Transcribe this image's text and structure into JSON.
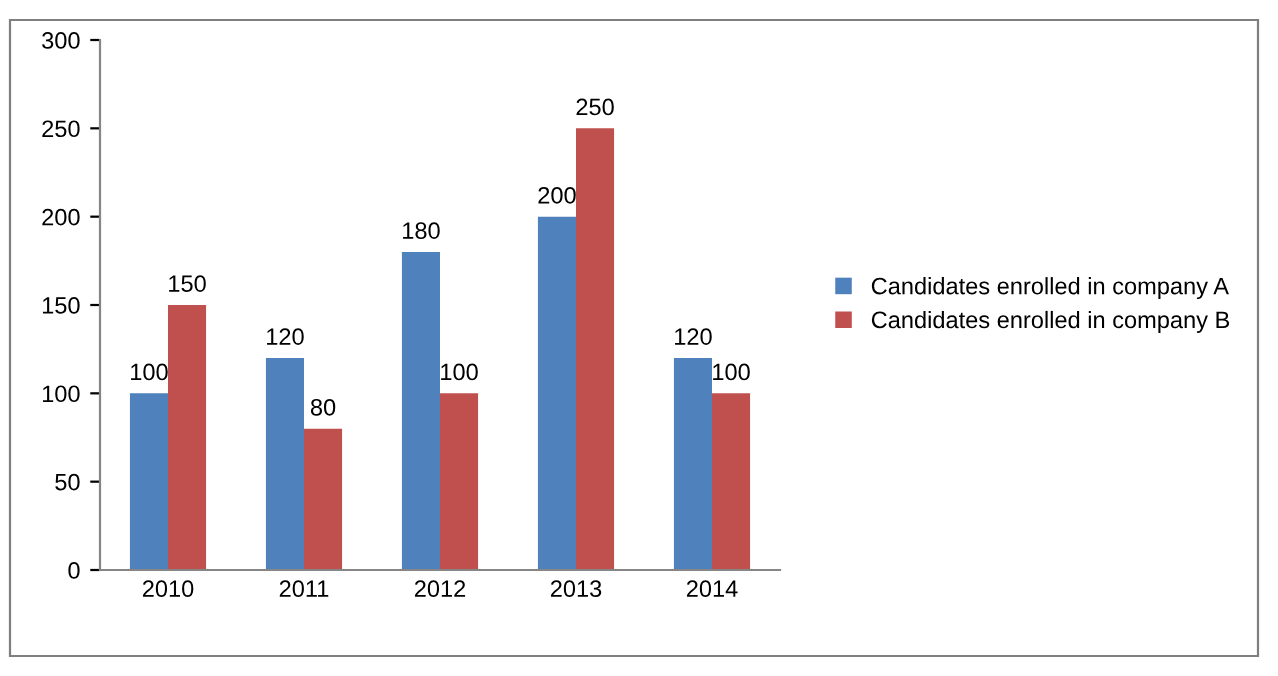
{
  "chart_data": {
    "type": "bar",
    "categories": [
      "2010",
      "2011",
      "2012",
      "2013",
      "2014"
    ],
    "series": [
      {
        "name": "Candidates enrolled in company A",
        "color": "#4f81bd",
        "values": [
          100,
          120,
          180,
          200,
          120
        ]
      },
      {
        "name": "Candidates enrolled in company B",
        "color": "#c0504d",
        "values": [
          150,
          80,
          100,
          250,
          100
        ]
      }
    ],
    "ylim": [
      0,
      300
    ],
    "yticks": [
      0,
      50,
      100,
      150,
      200,
      250,
      300
    ],
    "grid": false,
    "legend": "right",
    "data_labels": true
  }
}
